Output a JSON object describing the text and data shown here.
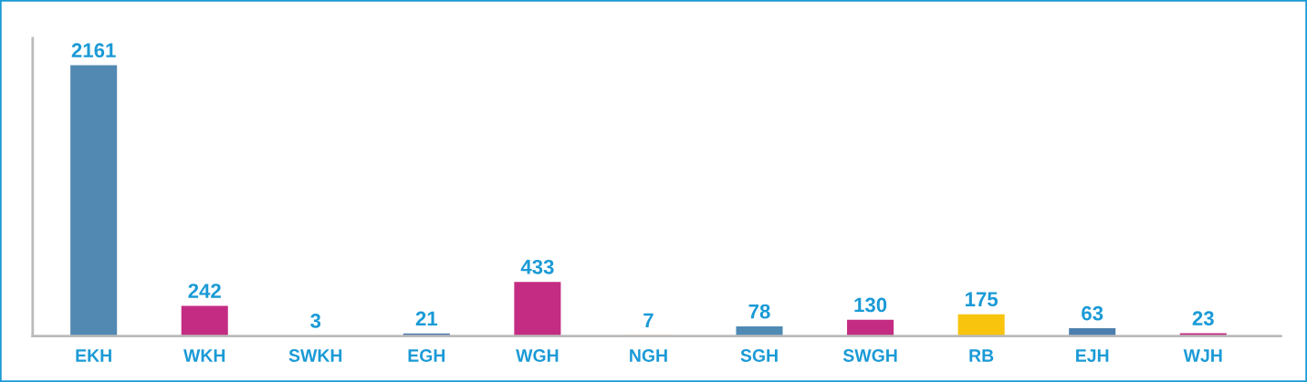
{
  "chart_data": {
    "type": "bar",
    "categories": [
      "EKH",
      "WKH",
      "SWKH",
      "EGH",
      "WGH",
      "NGH",
      "SGH",
      "SWGH",
      "RB",
      "EJH",
      "WJH"
    ],
    "values": [
      2161,
      242,
      3,
      21,
      433,
      7,
      78,
      130,
      175,
      63,
      23
    ],
    "colors": [
      "#5289b3",
      "#c32c82",
      "#f4a21c",
      "#4d78ab",
      "#c32c82",
      "#f4a21c",
      "#4f8ab5",
      "#c32c82",
      "#f8c40e",
      "#4d7fae",
      "#c32c82"
    ],
    "data_labels": true,
    "grid": false,
    "legend": false
  }
}
